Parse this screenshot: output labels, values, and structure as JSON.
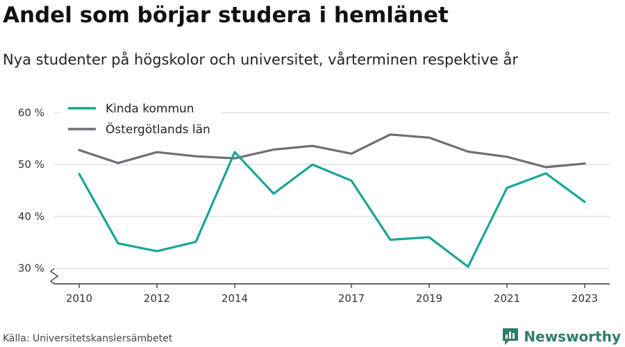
{
  "header": {
    "title": "Andel som börjar studera i hemlänet",
    "subtitle": "Nya studenter på högskolor och universitet, vårterminen respektive år"
  },
  "footer": {
    "source": "Källa: Universitetskanslersämbetet",
    "brand": "Newsworthy"
  },
  "colors": {
    "kinda": "#17a596",
    "ostergotland": "#6e6e73",
    "brand": "#2e7d6b"
  },
  "chart_data": {
    "type": "line",
    "title": "Andel som börjar studera i hemlänet",
    "subtitle": "Nya studenter på högskolor och universitet, vårterminen respektive år",
    "x": [
      2010,
      2011,
      2012,
      2013,
      2014,
      2015,
      2016,
      2017,
      2018,
      2019,
      2020,
      2021,
      2022,
      2023
    ],
    "x_tick_labels": [
      "2010",
      "2012",
      "2014",
      "2017",
      "2019",
      "2021",
      "2023"
    ],
    "x_tick_values": [
      2010,
      2012,
      2014,
      2017,
      2019,
      2021,
      2023
    ],
    "y_tick_labels": [
      "30 %",
      "40 %",
      "50 %",
      "60 %"
    ],
    "y_tick_values": [
      30,
      40,
      50,
      60
    ],
    "ylim": [
      27,
      63
    ],
    "grid": true,
    "legend_position": "top-left",
    "series": [
      {
        "name": "Kinda kommun",
        "color": "#17a596",
        "values": [
          48.2,
          34.8,
          33.3,
          35.1,
          52.4,
          44.4,
          50.0,
          46.9,
          35.5,
          36.0,
          30.3,
          45.5,
          48.3,
          42.8
        ]
      },
      {
        "name": "Östergötlands län",
        "color": "#6e6e73",
        "values": [
          52.8,
          50.3,
          52.4,
          51.6,
          51.2,
          52.9,
          53.6,
          52.1,
          55.8,
          55.2,
          52.5,
          51.5,
          49.5,
          50.2
        ]
      }
    ]
  }
}
